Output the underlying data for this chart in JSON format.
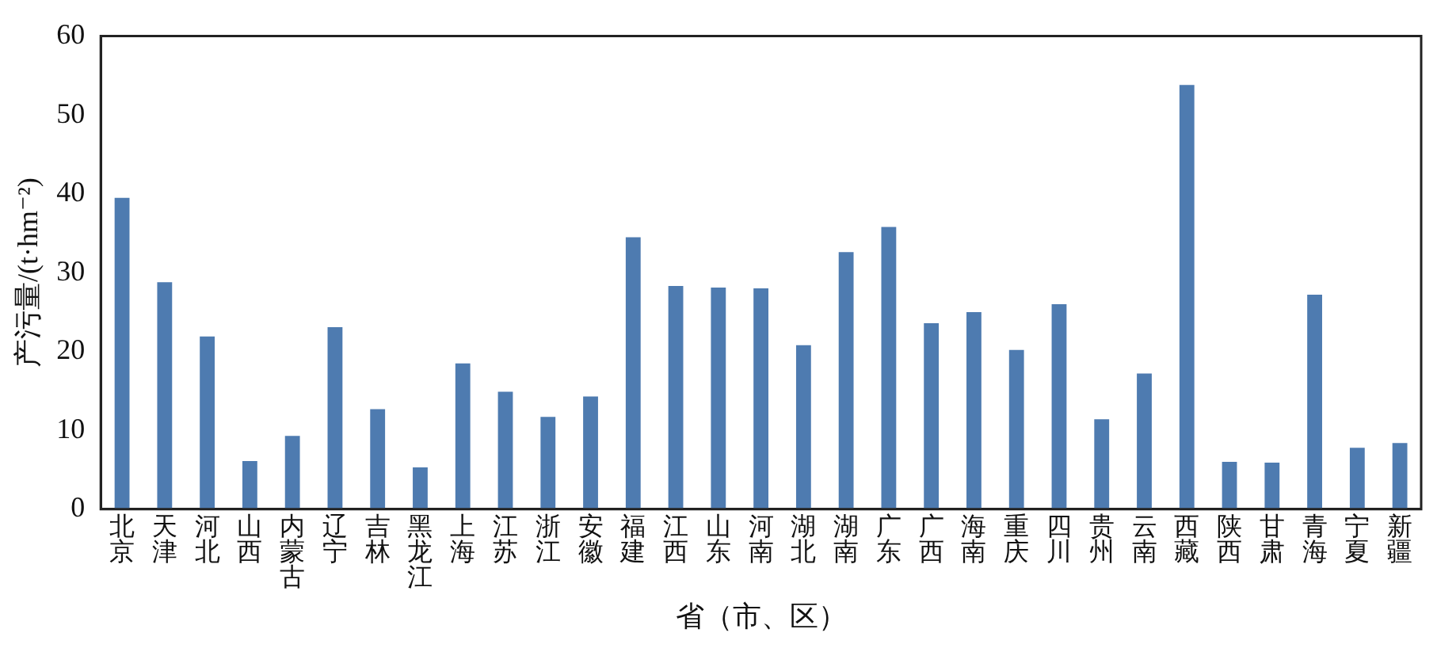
{
  "chart_data": {
    "type": "bar",
    "xlabel": "省（市、区）",
    "ylabel": "产污量/(t·hm⁻²)",
    "categories": [
      "北京",
      "天津",
      "河北",
      "山西",
      "内蒙古",
      "辽宁",
      "吉林",
      "黑龙江",
      "上海",
      "江苏",
      "浙江",
      "安徽",
      "福建",
      "江西",
      "山东",
      "河南",
      "湖北",
      "湖南",
      "广东",
      "广西",
      "海南",
      "重庆",
      "四川",
      "贵州",
      "云南",
      "西藏",
      "陕西",
      "甘肃",
      "青海",
      "宁夏",
      "新疆"
    ],
    "values": [
      39.5,
      28.8,
      21.9,
      6.1,
      9.3,
      23.1,
      12.7,
      5.3,
      18.5,
      14.9,
      11.7,
      14.3,
      34.5,
      28.3,
      28.1,
      28.0,
      20.8,
      32.6,
      35.8,
      23.6,
      25.0,
      20.2,
      26.0,
      11.4,
      17.2,
      53.8,
      6.0,
      5.9,
      27.2,
      7.8,
      8.4
    ],
    "color": "#4e7bb0",
    "ylim": [
      0,
      60
    ],
    "yticks": [
      0,
      10,
      20,
      30,
      40,
      50,
      60
    ],
    "grid": false,
    "legend": false
  }
}
